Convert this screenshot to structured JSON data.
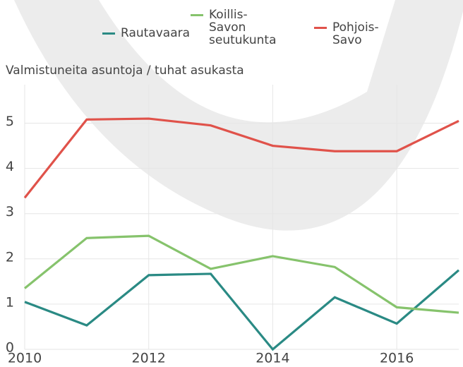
{
  "chart_data": {
    "type": "line",
    "y_axis_title": "Valmistuneita asuntoja / tuhat asukasta",
    "x": [
      2010,
      2011,
      2012,
      2013,
      2014,
      2015,
      2016,
      2017
    ],
    "series": [
      {
        "name": "Rautavaara",
        "color": "#2a8a84",
        "values": [
          1.05,
          0.53,
          1.64,
          1.67,
          0,
          1.15,
          0.57,
          1.75
        ]
      },
      {
        "name": "Koillis-Savon seutukunta",
        "color": "#86c36c",
        "values": [
          1.35,
          2.46,
          2.51,
          1.78,
          2.06,
          1.82,
          0.93,
          0.81
        ]
      },
      {
        "name": "Pohjois-Savo",
        "color": "#e0524a",
        "values": [
          3.35,
          5.08,
          5.1,
          4.95,
          4.5,
          4.38,
          4.38,
          5.05
        ]
      }
    ],
    "xlim": [
      2010,
      2017
    ],
    "xticks": [
      2010,
      2012,
      2014,
      2016
    ],
    "ylim": [
      0,
      5.85
    ],
    "yticks": [
      0,
      1,
      2,
      3,
      4,
      5
    ],
    "grid": true
  }
}
